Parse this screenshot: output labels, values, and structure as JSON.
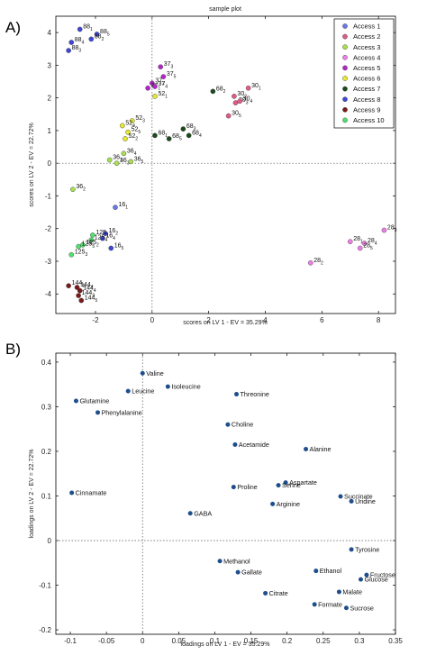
{
  "chart_data": [
    {
      "type": "scatter",
      "panel_label": "A)",
      "title": "sample plot",
      "xlabel": "scores on LV 1 - EV = 35.29%",
      "ylabel": "scores on LV 2 - EV = 22.72%",
      "xlim": [
        -3.4,
        8.6
      ],
      "ylim": [
        -4.6,
        4.5
      ],
      "xticks": [
        -2,
        0,
        2,
        4,
        6,
        8
      ],
      "yticks": [
        -4,
        -3,
        -2,
        -1,
        0,
        1,
        2,
        3,
        4
      ],
      "grid": false,
      "reference_lines": {
        "x": 0,
        "y": 0,
        "style": "dotted"
      },
      "legend_position": "top-right",
      "series": [
        {
          "name": "Access 1",
          "color": "#6a78e8",
          "points": [
            {
              "x": -1.3,
              "y": -1.35,
              "label": "16",
              "sub": "1"
            }
          ]
        },
        {
          "name": "Access 2",
          "color": "#e05a8a",
          "points": [
            {
              "x": 3.4,
              "y": 2.3,
              "label": "30",
              "sub": "1"
            },
            {
              "x": 2.9,
              "y": 2.05,
              "label": "30",
              "sub": "2"
            },
            {
              "x": 2.95,
              "y": 1.85,
              "label": "30",
              "sub": "3"
            },
            {
              "x": 3.1,
              "y": 1.9,
              "label": "30",
              "sub": "4"
            },
            {
              "x": 2.7,
              "y": 1.45,
              "label": "30",
              "sub": "5"
            }
          ]
        },
        {
          "name": "Access 3",
          "color": "#a8e050",
          "points": [
            {
              "x": -2.8,
              "y": -0.8,
              "label": "36",
              "sub": "2"
            },
            {
              "x": -1.5,
              "y": 0.1,
              "label": "36",
              "sub": "1"
            },
            {
              "x": -1.25,
              "y": 0.0,
              "label": "36",
              "sub": "3"
            },
            {
              "x": -0.75,
              "y": 0.05,
              "label": "36",
              "sub": "5"
            },
            {
              "x": -1.0,
              "y": 0.3,
              "label": "36",
              "sub": "4"
            }
          ]
        },
        {
          "name": "Access 4",
          "color": "#ee7ee8",
          "points": [
            {
              "x": 8.2,
              "y": -2.05,
              "label": "28",
              "sub": "3"
            },
            {
              "x": 7.0,
              "y": -2.4,
              "label": "28",
              "sub": "1"
            },
            {
              "x": 7.5,
              "y": -2.45,
              "label": "28",
              "sub": "4"
            },
            {
              "x": 7.35,
              "y": -2.6,
              "label": "28",
              "sub": "5"
            },
            {
              "x": 5.6,
              "y": -3.05,
              "label": "28",
              "sub": "2"
            }
          ]
        },
        {
          "name": "Access 5",
          "color": "#b226c8",
          "points": [
            {
              "x": 0.3,
              "y": 2.95,
              "label": "37",
              "sub": "3"
            },
            {
              "x": 0.0,
              "y": 2.45,
              "label": "37",
              "sub": "2"
            },
            {
              "x": -0.15,
              "y": 2.3,
              "label": "37",
              "sub": "1"
            },
            {
              "x": 0.1,
              "y": 2.35,
              "label": "37",
              "sub": "4"
            },
            {
              "x": 0.4,
              "y": 2.65,
              "label": "37",
              "sub": "5"
            }
          ]
        },
        {
          "name": "Access 6",
          "color": "#e8e830",
          "points": [
            {
              "x": 0.1,
              "y": 2.05,
              "label": "52",
              "sub": "1"
            },
            {
              "x": -0.7,
              "y": 1.3,
              "label": "52",
              "sub": "3"
            },
            {
              "x": -1.05,
              "y": 1.15,
              "label": "52",
              "sub": "4"
            },
            {
              "x": -0.85,
              "y": 0.95,
              "label": "52",
              "sub": "5"
            },
            {
              "x": -0.95,
              "y": 0.75,
              "label": "52",
              "sub": "2"
            }
          ]
        },
        {
          "name": "Access 7",
          "color": "#1b4a1b",
          "points": [
            {
              "x": 2.15,
              "y": 2.2,
              "label": "68",
              "sub": "2"
            },
            {
              "x": 1.1,
              "y": 1.05,
              "label": "68",
              "sub": "3"
            },
            {
              "x": 1.3,
              "y": 0.85,
              "label": "68",
              "sub": "4"
            },
            {
              "x": 0.6,
              "y": 0.75,
              "label": "68",
              "sub": "5"
            },
            {
              "x": 0.1,
              "y": 0.85,
              "label": "68",
              "sub": "1"
            }
          ]
        },
        {
          "name": "Access 8",
          "color": "#3e47d8",
          "points": [
            {
              "x": -2.55,
              "y": 4.1,
              "label": "88",
              "sub": "1"
            },
            {
              "x": -1.95,
              "y": 3.95,
              "label": "88",
              "sub": "5"
            },
            {
              "x": -2.15,
              "y": 3.8,
              "label": "88",
              "sub": "2"
            },
            {
              "x": -2.85,
              "y": 3.7,
              "label": "88",
              "sub": "4"
            },
            {
              "x": -2.95,
              "y": 3.45,
              "label": "88",
              "sub": "3"
            },
            {
              "x": -1.65,
              "y": -2.15,
              "label": "16",
              "sub": "2"
            },
            {
              "x": -1.75,
              "y": -2.3,
              "label": "16",
              "sub": "4"
            },
            {
              "x": -1.45,
              "y": -2.6,
              "label": "16",
              "sub": "5"
            }
          ]
        },
        {
          "name": "Access 9",
          "color": "#7a1a1a",
          "points": [
            {
              "x": -2.95,
              "y": -3.75,
              "label": "144",
              "sub": "1"
            },
            {
              "x": -2.65,
              "y": -3.8,
              "label": "144",
              "sub": "2"
            },
            {
              "x": -2.55,
              "y": -3.9,
              "label": "144",
              "sub": "4"
            },
            {
              "x": -2.6,
              "y": -4.05,
              "label": "144",
              "sub": "3"
            },
            {
              "x": -2.5,
              "y": -4.2,
              "label": "144",
              "sub": "5"
            }
          ]
        },
        {
          "name": "Access 10",
          "color": "#50e070",
          "points": [
            {
              "x": -2.1,
              "y": -2.2,
              "label": "125",
              "sub": "1"
            },
            {
              "x": -2.15,
              "y": -2.35,
              "label": "125",
              "sub": "4"
            },
            {
              "x": -2.45,
              "y": -2.5,
              "label": "125",
              "sub": "2"
            },
            {
              "x": -2.6,
              "y": -2.55,
              "label": "125",
              "sub": "5"
            },
            {
              "x": -2.85,
              "y": -2.8,
              "label": "125",
              "sub": "3"
            }
          ]
        }
      ]
    },
    {
      "type": "scatter",
      "panel_label": "B)",
      "xlabel": "loadings on LV 1 - EV = 35.29%",
      "ylabel": "loadings on LV 2 - EV = 22.72%",
      "xlim": [
        -0.12,
        0.35
      ],
      "ylim": [
        -0.21,
        0.42
      ],
      "xticks": [
        -0.1,
        -0.05,
        0,
        0.05,
        0.1,
        0.15,
        0.2,
        0.25,
        0.3,
        0.35
      ],
      "yticks": [
        -0.2,
        -0.1,
        0,
        0.1,
        0.2,
        0.3,
        0.4
      ],
      "reference_lines": {
        "x": 0,
        "y": 0,
        "style": "dotted"
      },
      "color": "#1f4e8c",
      "points": [
        {
          "x": 0.0,
          "y": 0.375,
          "label": "Valine"
        },
        {
          "x": 0.035,
          "y": 0.345,
          "label": "Isoleucine"
        },
        {
          "x": -0.02,
          "y": 0.335,
          "label": "Leucine"
        },
        {
          "x": 0.13,
          "y": 0.328,
          "label": "Threonine"
        },
        {
          "x": -0.092,
          "y": 0.313,
          "label": "Glutamine"
        },
        {
          "x": -0.062,
          "y": 0.287,
          "label": "Phenylalanine"
        },
        {
          "x": 0.118,
          "y": 0.26,
          "label": "Choline"
        },
        {
          "x": 0.128,
          "y": 0.215,
          "label": "Acetamide"
        },
        {
          "x": 0.226,
          "y": 0.205,
          "label": "Alanine"
        },
        {
          "x": 0.198,
          "y": 0.13,
          "label": "Aspartate"
        },
        {
          "x": 0.188,
          "y": 0.124,
          "label": "Serine"
        },
        {
          "x": 0.126,
          "y": 0.12,
          "label": "Proline"
        },
        {
          "x": 0.274,
          "y": 0.099,
          "label": "Succinate"
        },
        {
          "x": 0.289,
          "y": 0.088,
          "label": "Uridine"
        },
        {
          "x": 0.18,
          "y": 0.082,
          "label": "Arginine"
        },
        {
          "x": -0.098,
          "y": 0.107,
          "label": "Cinnamate"
        },
        {
          "x": 0.066,
          "y": 0.061,
          "label": "GABA"
        },
        {
          "x": 0.289,
          "y": -0.02,
          "label": "Tyrosine"
        },
        {
          "x": 0.107,
          "y": -0.046,
          "label": "Methanol"
        },
        {
          "x": 0.132,
          "y": -0.071,
          "label": "Gallate"
        },
        {
          "x": 0.24,
          "y": -0.068,
          "label": "Ethanol"
        },
        {
          "x": 0.31,
          "y": -0.077,
          "label": "Fructose"
        },
        {
          "x": 0.302,
          "y": -0.087,
          "label": "Glucose"
        },
        {
          "x": 0.17,
          "y": -0.118,
          "label": "Citrate"
        },
        {
          "x": 0.272,
          "y": -0.115,
          "label": "Malate"
        },
        {
          "x": 0.238,
          "y": -0.143,
          "label": "Formate"
        },
        {
          "x": 0.282,
          "y": -0.151,
          "label": "Sucrose"
        }
      ]
    }
  ]
}
